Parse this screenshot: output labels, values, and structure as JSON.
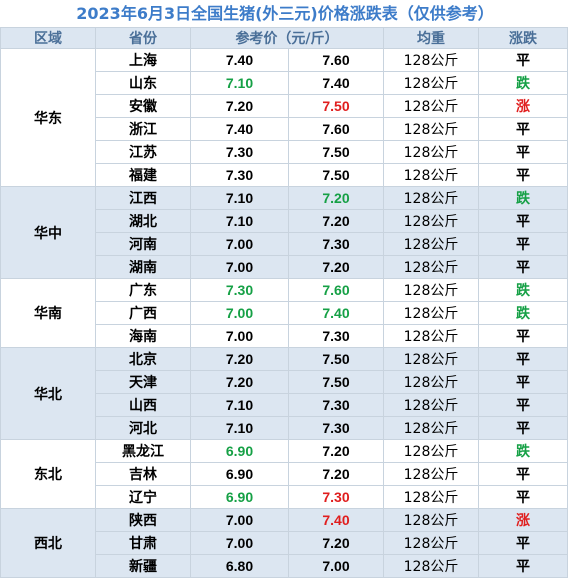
{
  "title": "2023年6月3日全国生猪(外三元)价格涨跌表（仅供参考）",
  "headers": {
    "region": "区域",
    "province": "省份",
    "price": "参考价（元/斤）",
    "avg_weight": "均重",
    "trend": "涨跌"
  },
  "colors": {
    "up": "#e01e1e",
    "down": "#15a045",
    "flat": "#000000",
    "header_bg": "#dce6f1",
    "title": "#3d7cc9"
  },
  "groups": [
    {
      "region": "华东",
      "shaded": false,
      "rows": [
        {
          "province": "上海",
          "prev": "7.40",
          "prev_color": "flat",
          "cur": "7.60",
          "cur_color": "flat",
          "avg": "128公斤",
          "trend": "平",
          "trend_color": "flat"
        },
        {
          "province": "山东",
          "prev": "7.10",
          "prev_color": "down",
          "cur": "7.40",
          "cur_color": "flat",
          "avg": "128公斤",
          "trend": "跌",
          "trend_color": "down"
        },
        {
          "province": "安徽",
          "prev": "7.20",
          "prev_color": "flat",
          "cur": "7.50",
          "cur_color": "up",
          "avg": "128公斤",
          "trend": "涨",
          "trend_color": "up"
        },
        {
          "province": "浙江",
          "prev": "7.40",
          "prev_color": "flat",
          "cur": "7.60",
          "cur_color": "flat",
          "avg": "128公斤",
          "trend": "平",
          "trend_color": "flat"
        },
        {
          "province": "江苏",
          "prev": "7.30",
          "prev_color": "flat",
          "cur": "7.50",
          "cur_color": "flat",
          "avg": "128公斤",
          "trend": "平",
          "trend_color": "flat"
        },
        {
          "province": "福建",
          "prev": "7.30",
          "prev_color": "flat",
          "cur": "7.50",
          "cur_color": "flat",
          "avg": "128公斤",
          "trend": "平",
          "trend_color": "flat"
        }
      ]
    },
    {
      "region": "华中",
      "shaded": true,
      "rows": [
        {
          "province": "江西",
          "prev": "7.10",
          "prev_color": "flat",
          "cur": "7.20",
          "cur_color": "down",
          "avg": "128公斤",
          "trend": "跌",
          "trend_color": "down"
        },
        {
          "province": "湖北",
          "prev": "7.10",
          "prev_color": "flat",
          "cur": "7.20",
          "cur_color": "flat",
          "avg": "128公斤",
          "trend": "平",
          "trend_color": "flat"
        },
        {
          "province": "河南",
          "prev": "7.00",
          "prev_color": "flat",
          "cur": "7.30",
          "cur_color": "flat",
          "avg": "128公斤",
          "trend": "平",
          "trend_color": "flat"
        },
        {
          "province": "湖南",
          "prev": "7.00",
          "prev_color": "flat",
          "cur": "7.20",
          "cur_color": "flat",
          "avg": "128公斤",
          "trend": "平",
          "trend_color": "flat"
        }
      ]
    },
    {
      "region": "华南",
      "shaded": false,
      "rows": [
        {
          "province": "广东",
          "prev": "7.30",
          "prev_color": "down",
          "cur": "7.60",
          "cur_color": "down",
          "avg": "128公斤",
          "trend": "跌",
          "trend_color": "down"
        },
        {
          "province": "广西",
          "prev": "7.00",
          "prev_color": "down",
          "cur": "7.40",
          "cur_color": "down",
          "avg": "128公斤",
          "trend": "跌",
          "trend_color": "down"
        },
        {
          "province": "海南",
          "prev": "7.00",
          "prev_color": "flat",
          "cur": "7.30",
          "cur_color": "flat",
          "avg": "128公斤",
          "trend": "平",
          "trend_color": "flat"
        }
      ]
    },
    {
      "region": "华北",
      "shaded": true,
      "rows": [
        {
          "province": "北京",
          "prev": "7.20",
          "prev_color": "flat",
          "cur": "7.50",
          "cur_color": "flat",
          "avg": "128公斤",
          "trend": "平",
          "trend_color": "flat"
        },
        {
          "province": "天津",
          "prev": "7.20",
          "prev_color": "flat",
          "cur": "7.50",
          "cur_color": "flat",
          "avg": "128公斤",
          "trend": "平",
          "trend_color": "flat"
        },
        {
          "province": "山西",
          "prev": "7.10",
          "prev_color": "flat",
          "cur": "7.30",
          "cur_color": "flat",
          "avg": "128公斤",
          "trend": "平",
          "trend_color": "flat"
        },
        {
          "province": "河北",
          "prev": "7.10",
          "prev_color": "flat",
          "cur": "7.30",
          "cur_color": "flat",
          "avg": "128公斤",
          "trend": "平",
          "trend_color": "flat"
        }
      ]
    },
    {
      "region": "东北",
      "shaded": false,
      "rows": [
        {
          "province": "黑龙江",
          "prev": "6.90",
          "prev_color": "down",
          "cur": "7.20",
          "cur_color": "flat",
          "avg": "128公斤",
          "trend": "跌",
          "trend_color": "down"
        },
        {
          "province": "吉林",
          "prev": "6.90",
          "prev_color": "flat",
          "cur": "7.20",
          "cur_color": "flat",
          "avg": "128公斤",
          "trend": "平",
          "trend_color": "flat"
        },
        {
          "province": "辽宁",
          "prev": "6.90",
          "prev_color": "down",
          "cur": "7.30",
          "cur_color": "up",
          "avg": "128公斤",
          "trend": "平",
          "trend_color": "flat"
        }
      ]
    },
    {
      "region": "西北",
      "shaded": true,
      "rows": [
        {
          "province": "陕西",
          "prev": "7.00",
          "prev_color": "flat",
          "cur": "7.40",
          "cur_color": "up",
          "avg": "128公斤",
          "trend": "涨",
          "trend_color": "up"
        },
        {
          "province": "甘肃",
          "prev": "7.00",
          "prev_color": "flat",
          "cur": "7.20",
          "cur_color": "flat",
          "avg": "128公斤",
          "trend": "平",
          "trend_color": "flat"
        },
        {
          "province": "新疆",
          "prev": "6.80",
          "prev_color": "flat",
          "cur": "7.00",
          "cur_color": "flat",
          "avg": "128公斤",
          "trend": "平",
          "trend_color": "flat"
        }
      ]
    }
  ]
}
